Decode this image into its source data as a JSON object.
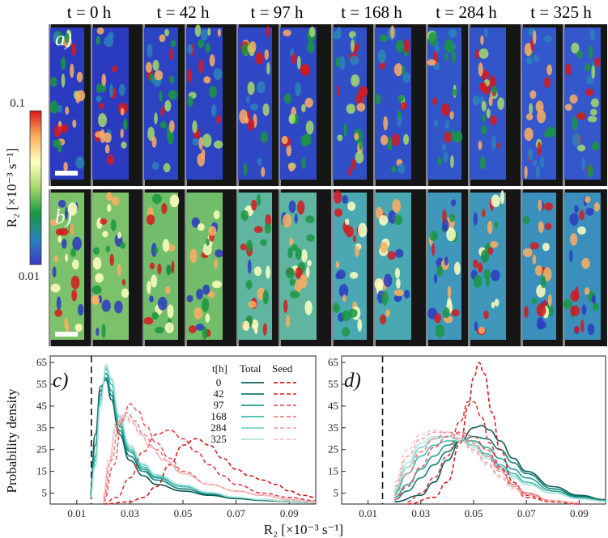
{
  "figure": {
    "time_labels": [
      "t = 0 h",
      "t = 42 h",
      "t = 97 h",
      "t = 168 h",
      "t = 284 h",
      "t = 325 h"
    ],
    "panel_a_label": "a)",
    "panel_b_label": "b)",
    "panel_c_label": "c)",
    "panel_d_label": "d)",
    "colorbar": {
      "title": "R₂ [×10⁻³ s⁻¹]",
      "max_label": "0.1",
      "min_label": "0.01",
      "colors": [
        "#d7191c",
        "#fdae61",
        "#ffffbf",
        "#a6d96a",
        "#1a9641",
        "#2b83ba",
        "#3a3ac4"
      ]
    },
    "x_axis_title": "R₂ [×10⁻³ s⁻¹]",
    "y_axis_title": "Probability density",
    "legend": {
      "header_t": "t[h]",
      "header_total": "Total",
      "header_seed": "Seed",
      "rows": [
        "0",
        "42",
        "97",
        "168",
        "284",
        "325"
      ]
    }
  },
  "chart_data": [
    {
      "panel": "c",
      "type": "line",
      "xlabel": "R₂ [×10⁻³ s⁻¹]",
      "ylabel": "Probability density",
      "xlim": [
        0,
        0.1
      ],
      "ylim": [
        0,
        68
      ],
      "xticks": [
        0.01,
        0.03,
        0.05,
        0.07,
        0.09
      ],
      "xtick_labels": [
        "0.01",
        "0.03",
        "0.05",
        "0.07",
        "0.09"
      ],
      "yticks": [
        5,
        15,
        25,
        35,
        45,
        55,
        65
      ],
      "ytick_labels": [
        "5",
        "15",
        "25",
        "35",
        "45",
        "55",
        "65"
      ],
      "reference_line_x": 0.0155,
      "series": [
        {
          "name": "Total 0",
          "style": "solid",
          "color": "#0b5b55",
          "x": [
            0.015,
            0.017,
            0.019,
            0.021,
            0.023,
            0.026,
            0.03,
            0.035,
            0.04,
            0.05,
            0.06,
            0.07,
            0.08,
            0.09,
            0.1
          ],
          "y": [
            5,
            32,
            54,
            57,
            48,
            32,
            20,
            13,
            9,
            6,
            4,
            2.5,
            1.6,
            1,
            0.6
          ]
        },
        {
          "name": "Total 42",
          "style": "solid",
          "color": "#127e74",
          "x": [
            0.015,
            0.017,
            0.019,
            0.021,
            0.023,
            0.026,
            0.03,
            0.035,
            0.04,
            0.05,
            0.06,
            0.07,
            0.08,
            0.09,
            0.1
          ],
          "y": [
            4,
            27,
            52,
            58,
            50,
            34,
            22,
            15,
            11,
            7,
            4.5,
            3,
            2,
            1.2,
            0.7
          ]
        },
        {
          "name": "Total 97",
          "style": "solid",
          "color": "#1fa095",
          "x": [
            0.015,
            0.017,
            0.019,
            0.021,
            0.023,
            0.026,
            0.03,
            0.035,
            0.04,
            0.05,
            0.06,
            0.07,
            0.08,
            0.09,
            0.1
          ],
          "y": [
            3,
            22,
            50,
            60,
            52,
            36,
            24,
            16,
            12,
            8,
            5,
            3,
            2,
            1.2,
            0.7
          ]
        },
        {
          "name": "Total 168",
          "style": "solid",
          "color": "#3cbcb0",
          "x": [
            0.015,
            0.017,
            0.019,
            0.021,
            0.023,
            0.026,
            0.03,
            0.035,
            0.04,
            0.05,
            0.06,
            0.07,
            0.08,
            0.09,
            0.1
          ],
          "y": [
            3,
            20,
            48,
            62,
            55,
            38,
            25,
            17,
            12.5,
            8,
            5,
            3,
            2,
            1.2,
            0.7
          ]
        },
        {
          "name": "Total 284",
          "style": "solid",
          "color": "#7fd3cb",
          "x": [
            0.015,
            0.017,
            0.019,
            0.021,
            0.023,
            0.026,
            0.03,
            0.035,
            0.04,
            0.05,
            0.06,
            0.07,
            0.08,
            0.09,
            0.1
          ],
          "y": [
            2.5,
            18,
            46,
            63,
            57,
            40,
            26,
            18,
            13,
            8.5,
            5.2,
            3.1,
            2,
            1.2,
            0.7
          ]
        },
        {
          "name": "Total 325",
          "style": "solid",
          "color": "#b3e3df",
          "x": [
            0.015,
            0.017,
            0.019,
            0.021,
            0.023,
            0.026,
            0.03,
            0.035,
            0.04,
            0.05,
            0.06,
            0.07,
            0.08,
            0.09,
            0.1
          ],
          "y": [
            2.5,
            17,
            45,
            64,
            58,
            41,
            27,
            18.5,
            13.5,
            8.8,
            5.4,
            3.2,
            2,
            1.2,
            0.7
          ]
        },
        {
          "name": "Seed 0",
          "style": "dashed",
          "color": "#d7191c",
          "x": [
            0.02,
            0.03,
            0.035,
            0.04,
            0.045,
            0.05,
            0.055,
            0.06,
            0.065,
            0.07,
            0.075,
            0.08,
            0.085,
            0.09,
            0.095,
            0.1
          ],
          "y": [
            0,
            1,
            3,
            8,
            18,
            27,
            30,
            27,
            21,
            16,
            13,
            11,
            9,
            6,
            4,
            3
          ]
        },
        {
          "name": "Seed 42",
          "style": "dashed",
          "color": "#e3353a",
          "x": [
            0.02,
            0.025,
            0.03,
            0.035,
            0.04,
            0.045,
            0.05,
            0.055,
            0.06,
            0.065,
            0.07,
            0.08,
            0.09,
            0.1
          ],
          "y": [
            0,
            3,
            12,
            24,
            32,
            34,
            30,
            24,
            18,
            13,
            9,
            5,
            3,
            1.5
          ]
        },
        {
          "name": "Seed 97",
          "style": "dashed",
          "color": "#ea5a5e",
          "x": [
            0.02,
            0.024,
            0.027,
            0.03,
            0.033,
            0.036,
            0.04,
            0.045,
            0.05,
            0.06,
            0.07,
            0.08,
            0.09,
            0.1
          ],
          "y": [
            1,
            18,
            38,
            46,
            43,
            36,
            28,
            21,
            15,
            9,
            6,
            4,
            2,
            1
          ]
        },
        {
          "name": "Seed 168",
          "style": "dashed",
          "color": "#f07e82",
          "x": [
            0.02,
            0.023,
            0.026,
            0.029,
            0.032,
            0.035,
            0.04,
            0.045,
            0.05,
            0.06,
            0.07,
            0.08,
            0.09,
            0.1
          ],
          "y": [
            2,
            20,
            38,
            42,
            38,
            32,
            25,
            19,
            14,
            9,
            6,
            4,
            2,
            1
          ]
        },
        {
          "name": "Seed 284",
          "style": "dashed",
          "color": "#f5a3a6",
          "x": [
            0.02,
            0.022,
            0.025,
            0.028,
            0.031,
            0.034,
            0.038,
            0.043,
            0.05,
            0.06,
            0.07,
            0.08,
            0.09,
            0.1
          ],
          "y": [
            3,
            18,
            36,
            40,
            37,
            32,
            26,
            20,
            14,
            9,
            6,
            4,
            2,
            1
          ]
        },
        {
          "name": "Seed 325",
          "style": "dashed",
          "color": "#f8c3c5",
          "x": [
            0.02,
            0.022,
            0.025,
            0.028,
            0.031,
            0.034,
            0.038,
            0.043,
            0.05,
            0.06,
            0.07,
            0.08,
            0.09,
            0.1
          ],
          "y": [
            4,
            20,
            38,
            41,
            38,
            32,
            26,
            20,
            14,
            9,
            6,
            4,
            2,
            1
          ]
        }
      ]
    },
    {
      "panel": "d",
      "type": "line",
      "xlabel": "R₂ [×10⁻³ s⁻¹]",
      "ylabel": "Probability density",
      "xlim": [
        0,
        0.1
      ],
      "ylim": [
        0,
        68
      ],
      "xticks": [
        0.01,
        0.03,
        0.05,
        0.07,
        0.09
      ],
      "xtick_labels": [
        "0.01",
        "0.03",
        "0.05",
        "0.07",
        "0.09"
      ],
      "yticks": [
        5,
        15,
        25,
        35,
        45,
        55,
        65
      ],
      "ytick_labels": [
        "5",
        "15",
        "25",
        "35",
        "45",
        "55",
        "65"
      ],
      "reference_line_x": 0.0155,
      "series": [
        {
          "name": "Total 0",
          "style": "solid",
          "color": "#0b5b55",
          "x": [
            0.02,
            0.03,
            0.035,
            0.04,
            0.045,
            0.05,
            0.053,
            0.056,
            0.06,
            0.065,
            0.07,
            0.08,
            0.09,
            0.1
          ],
          "y": [
            1,
            4,
            10,
            20,
            29,
            35,
            36,
            34,
            29,
            21,
            15,
            8,
            4,
            2
          ]
        },
        {
          "name": "Total 42",
          "style": "solid",
          "color": "#127e74",
          "x": [
            0.02,
            0.025,
            0.03,
            0.035,
            0.04,
            0.045,
            0.05,
            0.055,
            0.06,
            0.065,
            0.07,
            0.08,
            0.09,
            0.1
          ],
          "y": [
            2,
            6,
            12,
            18,
            24,
            29,
            31,
            30,
            25,
            19,
            14,
            7,
            3.5,
            1.8
          ]
        },
        {
          "name": "Total 97",
          "style": "solid",
          "color": "#1fa095",
          "x": [
            0.02,
            0.025,
            0.03,
            0.035,
            0.04,
            0.045,
            0.05,
            0.055,
            0.06,
            0.065,
            0.07,
            0.08,
            0.09,
            0.1
          ],
          "y": [
            3,
            9,
            16,
            22,
            27,
            29,
            29,
            26,
            21,
            16,
            12,
            6,
            3,
            1.5
          ]
        },
        {
          "name": "Total 168",
          "style": "solid",
          "color": "#3cbcb0",
          "x": [
            0.02,
            0.025,
            0.03,
            0.035,
            0.04,
            0.045,
            0.05,
            0.055,
            0.06,
            0.065,
            0.07,
            0.08,
            0.09,
            0.1
          ],
          "y": [
            5,
            14,
            22,
            27,
            29,
            29,
            27,
            23,
            18,
            14,
            10,
            5,
            2.5,
            1.2
          ]
        },
        {
          "name": "Total 284",
          "style": "solid",
          "color": "#7fd3cb",
          "x": [
            0.02,
            0.025,
            0.03,
            0.035,
            0.04,
            0.045,
            0.05,
            0.055,
            0.06,
            0.065,
            0.07,
            0.08,
            0.09,
            0.1
          ],
          "y": [
            6,
            17,
            26,
            30,
            31,
            30,
            27,
            22,
            17,
            13,
            9,
            5,
            2.5,
            1.2
          ]
        },
        {
          "name": "Total 325",
          "style": "solid",
          "color": "#b3e3df",
          "x": [
            0.02,
            0.025,
            0.03,
            0.035,
            0.04,
            0.045,
            0.05,
            0.055,
            0.06,
            0.065,
            0.07,
            0.08,
            0.09,
            0.1
          ],
          "y": [
            7,
            19,
            28,
            31,
            31,
            29,
            26,
            21,
            16,
            12,
            9,
            5,
            2.5,
            1.2
          ]
        },
        {
          "name": "Seed 0",
          "style": "dashed",
          "color": "#d7191c",
          "x": [
            0.025,
            0.035,
            0.04,
            0.045,
            0.048,
            0.05,
            0.052,
            0.054,
            0.057,
            0.06,
            0.065,
            0.07,
            0.08,
            0.09
          ],
          "y": [
            0,
            3,
            10,
            28,
            45,
            58,
            65,
            60,
            42,
            25,
            10,
            4,
            1,
            0
          ]
        },
        {
          "name": "Seed 42",
          "style": "dashed",
          "color": "#e3353a",
          "x": [
            0.025,
            0.03,
            0.035,
            0.04,
            0.045,
            0.048,
            0.05,
            0.053,
            0.056,
            0.06,
            0.065,
            0.07,
            0.08,
            0.09
          ],
          "y": [
            1,
            5,
            12,
            22,
            38,
            47,
            47,
            40,
            28,
            17,
            8,
            3,
            1,
            0
          ]
        },
        {
          "name": "Seed 97",
          "style": "dashed",
          "color": "#ea5a5e",
          "x": [
            0.02,
            0.025,
            0.03,
            0.035,
            0.04,
            0.045,
            0.05,
            0.055,
            0.06,
            0.065,
            0.07,
            0.08,
            0.09
          ],
          "y": [
            2,
            8,
            17,
            26,
            31,
            33,
            31,
            25,
            16,
            9,
            5,
            1.5,
            0.5
          ]
        },
        {
          "name": "Seed 168",
          "style": "dashed",
          "color": "#f07e82",
          "x": [
            0.02,
            0.025,
            0.03,
            0.035,
            0.04,
            0.045,
            0.05,
            0.055,
            0.06,
            0.065,
            0.07,
            0.08,
            0.09
          ],
          "y": [
            4,
            14,
            24,
            30,
            33,
            32,
            28,
            22,
            15,
            9,
            5,
            1.5,
            0.5
          ]
        },
        {
          "name": "Seed 284",
          "style": "dashed",
          "color": "#f5a3a6",
          "x": [
            0.02,
            0.025,
            0.03,
            0.035,
            0.04,
            0.045,
            0.05,
            0.055,
            0.06,
            0.065,
            0.07,
            0.08,
            0.09
          ],
          "y": [
            8,
            22,
            30,
            33,
            33,
            30,
            25,
            19,
            13,
            8,
            4.5,
            1.5,
            0.5
          ]
        },
        {
          "name": "Seed 325",
          "style": "dashed",
          "color": "#f8c3c5",
          "x": [
            0.02,
            0.025,
            0.03,
            0.035,
            0.04,
            0.045,
            0.05,
            0.055,
            0.06,
            0.065,
            0.07,
            0.08,
            0.09
          ],
          "y": [
            10,
            25,
            32,
            34,
            33,
            29,
            24,
            18,
            12,
            7,
            4,
            1.5,
            0.5
          ]
        }
      ]
    }
  ]
}
